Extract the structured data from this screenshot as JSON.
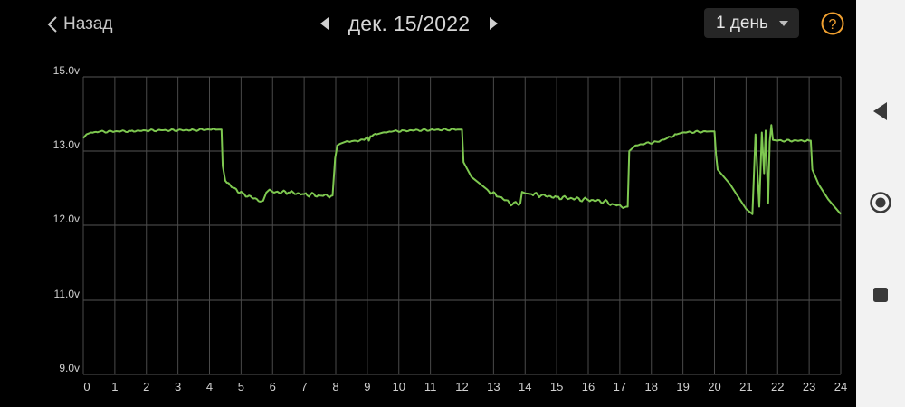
{
  "header": {
    "back_label": "Назад",
    "date": "дек. 15/2022",
    "period": "1 день",
    "help_glyph": "?",
    "accent_color": "#f0a030"
  },
  "chart_data": {
    "type": "line",
    "title": "",
    "xlabel": "",
    "ylabel": "",
    "xlim": [
      0,
      24
    ],
    "y_tick_values": [
      9.0,
      11.0,
      12.0,
      13.0,
      15.0
    ],
    "y_tick_labels": [
      "9.0v",
      "11.0v",
      "12.0v",
      "13.0v",
      "15.0v"
    ],
    "x_ticks": [
      0,
      1,
      2,
      3,
      4,
      5,
      6,
      7,
      8,
      9,
      10,
      11,
      12,
      13,
      14,
      15,
      16,
      17,
      18,
      19,
      20,
      21,
      22,
      23,
      24
    ],
    "grid": true,
    "line_color": "#7ec850",
    "series": [
      {
        "x": [
          0.0,
          0.1,
          0.25,
          0.5,
          1.0,
          1.5,
          2.0,
          2.5,
          3.0,
          3.5,
          4.0,
          4.3,
          4.38,
          4.42,
          4.5,
          4.8,
          5.1,
          5.4,
          5.7,
          5.8,
          5.9,
          6.0,
          6.5,
          7.0,
          7.5,
          7.9,
          7.98,
          8.05,
          8.15,
          8.3,
          8.6,
          8.9,
          9.0,
          9.05,
          9.1,
          9.3,
          9.5,
          9.8,
          10.2,
          10.5,
          11.0,
          11.5,
          11.95,
          12.0,
          12.05,
          12.3,
          12.8,
          13.2,
          13.6,
          13.85,
          13.9,
          14.0,
          14.2,
          14.5,
          15.0,
          15.5,
          16.0,
          16.5,
          16.8,
          17.2,
          17.25,
          17.3,
          17.5,
          17.8,
          18.2,
          18.5,
          18.8,
          19.0,
          19.5,
          19.9,
          20.0,
          20.05,
          20.1,
          20.5,
          20.8,
          21.0,
          21.2,
          21.3,
          21.35,
          21.42,
          21.5,
          21.57,
          21.62,
          21.7,
          21.75,
          21.8,
          21.85,
          22.0,
          22.5,
          23.0,
          23.05,
          23.1,
          23.3,
          23.6,
          24.0
        ],
        "y": [
          13.35,
          13.45,
          13.5,
          13.52,
          13.53,
          13.54,
          13.55,
          13.56,
          13.56,
          13.57,
          13.58,
          13.58,
          13.58,
          12.8,
          12.6,
          12.5,
          12.42,
          12.36,
          12.33,
          12.44,
          12.48,
          12.45,
          12.44,
          12.42,
          12.4,
          12.4,
          12.9,
          13.15,
          13.2,
          13.25,
          13.28,
          13.3,
          13.38,
          13.28,
          13.4,
          13.45,
          13.5,
          13.53,
          13.55,
          13.56,
          13.57,
          13.58,
          13.58,
          13.58,
          12.85,
          12.65,
          12.48,
          12.38,
          12.28,
          12.3,
          12.45,
          12.43,
          12.42,
          12.4,
          12.38,
          12.36,
          12.34,
          12.32,
          12.28,
          12.25,
          12.25,
          13.0,
          13.15,
          13.2,
          13.25,
          13.35,
          13.45,
          13.5,
          13.52,
          13.53,
          13.53,
          12.95,
          12.75,
          12.55,
          12.35,
          12.22,
          12.15,
          13.45,
          12.8,
          12.25,
          13.5,
          12.7,
          13.55,
          12.3,
          13.25,
          13.7,
          13.3,
          13.28,
          13.28,
          13.28,
          13.28,
          12.75,
          12.55,
          12.35,
          12.15
        ]
      }
    ]
  },
  "nav": {
    "back_icon": "triangle-back-icon",
    "home_icon": "circle-home-icon",
    "recents_icon": "square-recents-icon"
  }
}
